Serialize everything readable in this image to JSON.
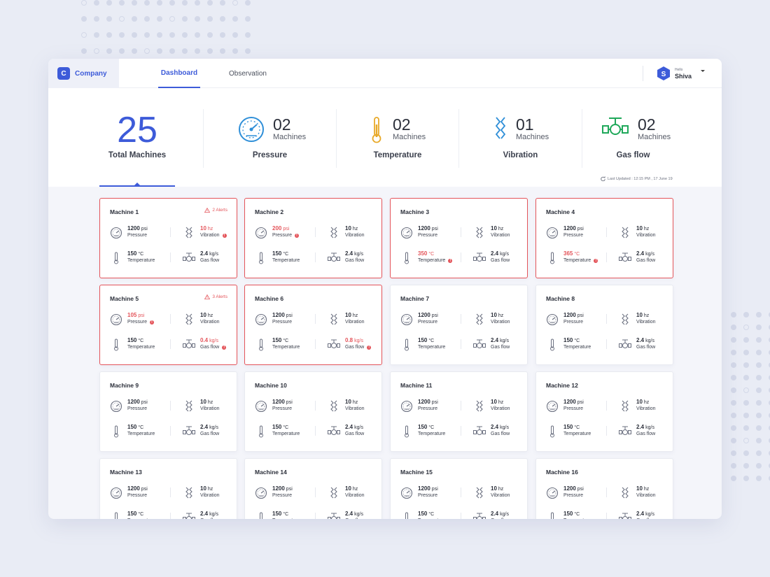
{
  "brand": {
    "logo_letter": "C",
    "name": "Company"
  },
  "nav": {
    "tabs": [
      {
        "label": "Dashboard",
        "active": true
      },
      {
        "label": "Observation",
        "active": false
      }
    ]
  },
  "user": {
    "greeting": "Hello",
    "name": "Shiva",
    "avatar_letter": "S"
  },
  "summary": {
    "total": {
      "value": "25",
      "label": "Total Machines"
    },
    "stats": [
      {
        "icon": "gauge-icon",
        "count": "02",
        "unit": "Machines",
        "label": "Pressure",
        "color": "#2f8fd8"
      },
      {
        "icon": "thermometer-icon",
        "count": "02",
        "unit": "Machines",
        "label": "Temperature",
        "color": "#e8a928"
      },
      {
        "icon": "vibration-icon",
        "count": "01",
        "unit": "Machines",
        "label": "Vibration",
        "color": "#2f8fd8"
      },
      {
        "icon": "gas-valve-icon",
        "count": "02",
        "unit": "Machines",
        "label": "Gas flow",
        "color": "#1fa85a"
      }
    ],
    "last_updated": "Last Updated : 12:15 PM , 17 June 19"
  },
  "colors": {
    "accent": "#3d5bd9",
    "alert": "#e4545a"
  },
  "machines": [
    {
      "name": "Machine 1",
      "alerts": "2 Alerts",
      "pressure": "1200",
      "vibration": "10",
      "temperature": "150",
      "gasflow": "2.4",
      "bad": [
        "vibration"
      ]
    },
    {
      "name": "Machine 2",
      "alerts": "",
      "pressure": "200",
      "vibration": "10",
      "temperature": "150",
      "gasflow": "2.4",
      "bad": [
        "pressure"
      ]
    },
    {
      "name": "Machine 3",
      "alerts": "",
      "pressure": "1200",
      "vibration": "10",
      "temperature": "350",
      "gasflow": "2.4",
      "bad": [
        "temperature"
      ]
    },
    {
      "name": "Machine 4",
      "alerts": "",
      "pressure": "1200",
      "vibration": "10",
      "temperature": "365",
      "gasflow": "2.4",
      "bad": [
        "temperature"
      ]
    },
    {
      "name": "Machine 5",
      "alerts": "3 Alerts",
      "pressure": "105",
      "vibration": "10",
      "temperature": "150",
      "gasflow": "0.4",
      "bad": [
        "pressure",
        "gasflow"
      ]
    },
    {
      "name": "Machine 6",
      "alerts": "",
      "pressure": "1200",
      "vibration": "10",
      "temperature": "150",
      "gasflow": "0.8",
      "bad": [
        "gasflow"
      ]
    },
    {
      "name": "Machine 7",
      "alerts": "",
      "pressure": "1200",
      "vibration": "10",
      "temperature": "150",
      "gasflow": "2.4",
      "bad": []
    },
    {
      "name": "Machine 8",
      "alerts": "",
      "pressure": "1200",
      "vibration": "10",
      "temperature": "150",
      "gasflow": "2.4",
      "bad": []
    },
    {
      "name": "Machine 9",
      "alerts": "",
      "pressure": "1200",
      "vibration": "10",
      "temperature": "150",
      "gasflow": "2.4",
      "bad": []
    },
    {
      "name": "Machine 10",
      "alerts": "",
      "pressure": "1200",
      "vibration": "10",
      "temperature": "150",
      "gasflow": "2.4",
      "bad": []
    },
    {
      "name": "Machine 11",
      "alerts": "",
      "pressure": "1200",
      "vibration": "10",
      "temperature": "150",
      "gasflow": "2.4",
      "bad": []
    },
    {
      "name": "Machine 12",
      "alerts": "",
      "pressure": "1200",
      "vibration": "10",
      "temperature": "150",
      "gasflow": "2.4",
      "bad": []
    },
    {
      "name": "Machine 13",
      "alerts": "",
      "pressure": "1200",
      "vibration": "10",
      "temperature": "150",
      "gasflow": "2.4",
      "bad": []
    },
    {
      "name": "Machine 14",
      "alerts": "",
      "pressure": "1200",
      "vibration": "10",
      "temperature": "150",
      "gasflow": "2.4",
      "bad": []
    },
    {
      "name": "Machine 15",
      "alerts": "",
      "pressure": "1200",
      "vibration": "10",
      "temperature": "150",
      "gasflow": "2.4",
      "bad": []
    },
    {
      "name": "Machine 16",
      "alerts": "",
      "pressure": "1200",
      "vibration": "10",
      "temperature": "150",
      "gasflow": "2.4",
      "bad": []
    }
  ],
  "metric_labels": {
    "pressure": "Pressure",
    "vibration": "Vibration",
    "temperature": "Temperature",
    "gasflow": "Gas flow"
  },
  "metric_units": {
    "pressure": "psi",
    "vibration": "hz",
    "temperature": "°C",
    "gasflow": "kg/s"
  }
}
